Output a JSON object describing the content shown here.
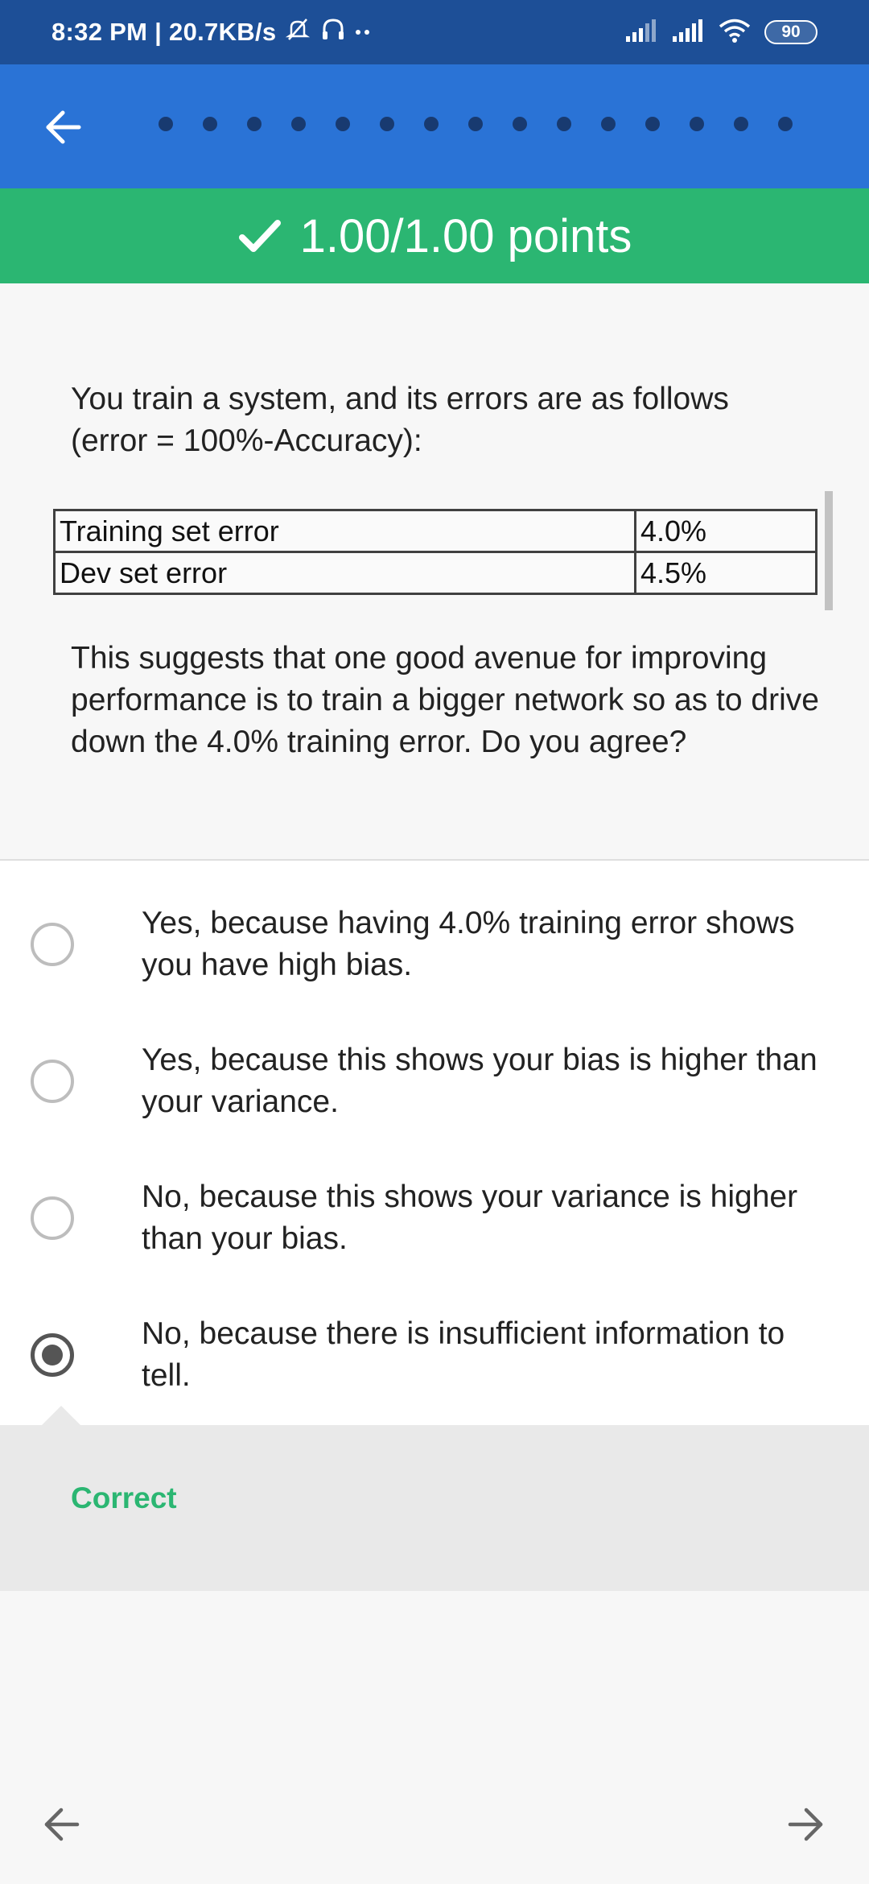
{
  "status_bar": {
    "time_speed": "8:32 PM | 20.7KB/s",
    "battery": "90"
  },
  "header": {
    "progress_dots_count": 15
  },
  "score": {
    "text": "1.00/1.00 points"
  },
  "question": {
    "intro": "You train a system, and its errors are as follows (error = 100%-Accuracy):",
    "table": [
      {
        "label": "Training set error",
        "value": "4.0%"
      },
      {
        "label": "Dev set error",
        "value": "4.5%"
      }
    ],
    "prompt": "This suggests that one good avenue for improving performance is to train a bigger network so as to drive down the 4.0% training error. Do you agree?"
  },
  "options": [
    {
      "text": "Yes, because having 4.0% training error shows you have high bias.",
      "selected": false
    },
    {
      "text": "Yes, because this shows your bias is higher than your variance.",
      "selected": false
    },
    {
      "text": "No, because this shows your variance is higher than your bias.",
      "selected": false
    },
    {
      "text": "No, because there is insufficient information to tell.",
      "selected": true
    }
  ],
  "feedback": {
    "text": "Correct"
  },
  "colors": {
    "status_bar": "#1d4f97",
    "app_bar": "#2a73d6",
    "success": "#2bb672"
  }
}
